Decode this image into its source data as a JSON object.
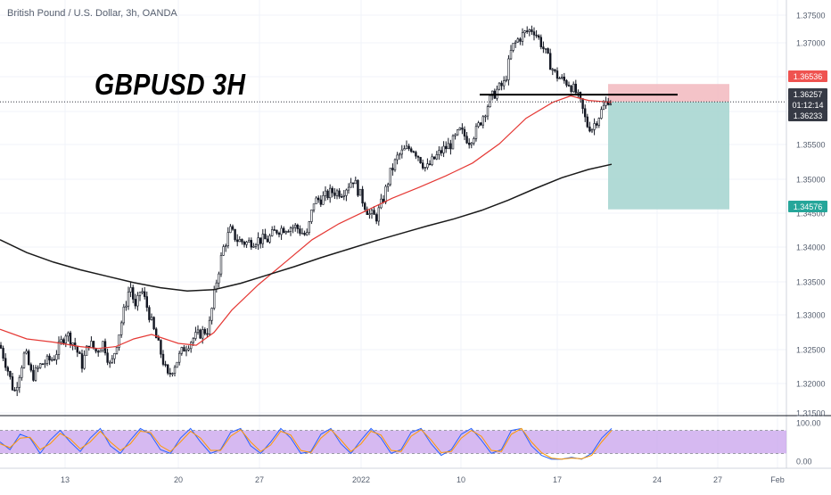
{
  "header": {
    "symbol_title": "British Pound / U.S. Dollar, 3h, OANDA",
    "chart_title": "GBPUSD 3H"
  },
  "chart_data": [
    {
      "type": "candlestick",
      "title": "British Pound / U.S. Dollar, 3h, OANDA",
      "annotation": "GBPUSD 3H",
      "x_tick_labels": [
        "13",
        "20",
        "27",
        "2022",
        "10",
        "17",
        "24",
        "27",
        "Feb"
      ],
      "y_tick_labels": [
        "1.37500",
        "1.37000",
        "1.36500",
        "1.36000",
        "1.35500",
        "1.35000",
        "1.34500",
        "1.34000",
        "1.33500",
        "1.33000",
        "1.32500",
        "1.32000",
        "1.31500"
      ],
      "ylim": [
        1.3135,
        1.3785
      ],
      "price_path": [
        [
          0,
          1.3245
        ],
        [
          8,
          1.321
        ],
        [
          16,
          1.317
        ],
        [
          28,
          1.3235
        ],
        [
          36,
          1.3195
        ],
        [
          46,
          1.3215
        ],
        [
          60,
          1.3225
        ],
        [
          74,
          1.3265
        ],
        [
          84,
          1.3245
        ],
        [
          92,
          1.3215
        ],
        [
          100,
          1.325
        ],
        [
          108,
          1.3235
        ],
        [
          116,
          1.325
        ],
        [
          124,
          1.321
        ],
        [
          132,
          1.3255
        ],
        [
          140,
          1.3305
        ],
        [
          146,
          1.334
        ],
        [
          152,
          1.33
        ],
        [
          158,
          1.3335
        ],
        [
          166,
          1.33
        ],
        [
          172,
          1.327
        ],
        [
          180,
          1.3235
        ],
        [
          188,
          1.3195
        ],
        [
          196,
          1.3215
        ],
        [
          206,
          1.324
        ],
        [
          216,
          1.3255
        ],
        [
          226,
          1.3265
        ],
        [
          234,
          1.327
        ],
        [
          242,
          1.334
        ],
        [
          250,
          1.3395
        ],
        [
          258,
          1.3425
        ],
        [
          266,
          1.341
        ],
        [
          276,
          1.3405
        ],
        [
          288,
          1.341
        ],
        [
          300,
          1.341
        ],
        [
          310,
          1.3425
        ],
        [
          322,
          1.343
        ],
        [
          332,
          1.343
        ],
        [
          344,
          1.3415
        ],
        [
          352,
          1.347
        ],
        [
          362,
          1.3475
        ],
        [
          372,
          1.3485
        ],
        [
          384,
          1.3485
        ],
        [
          396,
          1.3505
        ],
        [
          404,
          1.348
        ],
        [
          414,
          1.345
        ],
        [
          422,
          1.3445
        ],
        [
          430,
          1.3475
        ],
        [
          438,
          1.3515
        ],
        [
          446,
          1.354
        ],
        [
          454,
          1.355
        ],
        [
          462,
          1.3555
        ],
        [
          470,
          1.354
        ],
        [
          478,
          1.352
        ],
        [
          486,
          1.3535
        ],
        [
          496,
          1.355
        ],
        [
          506,
          1.356
        ],
        [
          516,
          1.358
        ],
        [
          526,
          1.3565
        ],
        [
          534,
          1.358
        ],
        [
          542,
          1.3605
        ],
        [
          550,
          1.363
        ],
        [
          558,
          1.3645
        ],
        [
          566,
          1.3655
        ],
        [
          574,
          1.371
        ],
        [
          582,
          1.3725
        ],
        [
          590,
          1.3735
        ],
        [
          598,
          1.374
        ],
        [
          606,
          1.372
        ],
        [
          614,
          1.3695
        ],
        [
          622,
          1.367
        ],
        [
          630,
          1.366
        ],
        [
          638,
          1.3655
        ],
        [
          646,
          1.364
        ],
        [
          652,
          1.362
        ],
        [
          658,
          1.359
        ],
        [
          664,
          1.3585
        ],
        [
          670,
          1.36
        ],
        [
          676,
          1.3615
        ],
        [
          682,
          1.363
        ],
        [
          686,
          1.3625
        ]
      ],
      "series": [
        {
          "name": "",
          "color": "#e53935",
          "values": [
            [
              0,
              1.327
            ],
            [
              30,
              1.3255
            ],
            [
              60,
              1.325
            ],
            [
              90,
              1.3243
            ],
            [
              110,
              1.324
            ],
            [
              130,
              1.3243
            ],
            [
              150,
              1.3255
            ],
            [
              170,
              1.3262
            ],
            [
              185,
              1.3255
            ],
            [
              200,
              1.3248
            ],
            [
              220,
              1.3245
            ],
            [
              240,
              1.3265
            ],
            [
              260,
              1.33
            ],
            [
              290,
              1.334
            ],
            [
              320,
              1.3375
            ],
            [
              350,
              1.341
            ],
            [
              380,
              1.3435
            ],
            [
              410,
              1.3455
            ],
            [
              440,
              1.3475
            ],
            [
              470,
              1.3492
            ],
            [
              500,
              1.351
            ],
            [
              530,
              1.353
            ],
            [
              560,
              1.356
            ],
            [
              590,
              1.36
            ],
            [
              620,
              1.3625
            ],
            [
              640,
              1.3635
            ],
            [
              660,
              1.3628
            ],
            [
              686,
              1.3625
            ]
          ]
        },
        {
          "name": "",
          "color": "#1a1a1a",
          "values": [
            [
              0,
              1.341
            ],
            [
              30,
              1.339
            ],
            [
              60,
              1.3375
            ],
            [
              90,
              1.3363
            ],
            [
              120,
              1.3353
            ],
            [
              150,
              1.3343
            ],
            [
              180,
              1.3335
            ],
            [
              210,
              1.333
            ],
            [
              240,
              1.3332
            ],
            [
              270,
              1.3342
            ],
            [
              300,
              1.3355
            ],
            [
              330,
              1.3368
            ],
            [
              360,
              1.3382
            ],
            [
              390,
              1.3395
            ],
            [
              420,
              1.3408
            ],
            [
              450,
              1.342
            ],
            [
              480,
              1.3432
            ],
            [
              510,
              1.3443
            ],
            [
              540,
              1.3456
            ],
            [
              570,
              1.3472
            ],
            [
              600,
              1.349
            ],
            [
              630,
              1.3507
            ],
            [
              660,
              1.352
            ],
            [
              686,
              1.3528
            ]
          ]
        }
      ],
      "horizontal_line": {
        "price": 1.3637,
        "color": "#000000"
      },
      "position": {
        "type": "short",
        "stop_loss": 1.36536,
        "entry": 1.36257,
        "target": 1.34576,
        "risk_color": "#f2b8be",
        "reward_color": "#a8d6d2"
      },
      "price_badges": [
        {
          "label": "1.36536",
          "price": 1.36536,
          "bg": "#ef5350",
          "fg": "#ffffff"
        },
        {
          "label": "1.36257",
          "price": 1.36257,
          "bg": "#363a45",
          "fg": "#ffffff"
        },
        {
          "label": "01:12:14",
          "price": 1.3615,
          "bg": "#363a45",
          "fg": "#ffffff"
        },
        {
          "label": "1.36233",
          "price": 1.3605,
          "bg": "#363a45",
          "fg": "#ffffff"
        },
        {
          "label": "1.34576",
          "price": 1.34576,
          "bg": "#26a69a",
          "fg": "#ffffff"
        }
      ]
    },
    {
      "type": "line",
      "name": "oscillator",
      "y_tick_labels": [
        "100.00",
        "0.00"
      ],
      "ylim": [
        0,
        100
      ],
      "band": [
        20,
        80
      ],
      "series": [
        {
          "name": "",
          "color": "#2962ff",
          "values": [
            50,
            30,
            70,
            60,
            20,
            55,
            80,
            50,
            25,
            60,
            85,
            40,
            20,
            55,
            85,
            70,
            30,
            20,
            60,
            85,
            50,
            20,
            30,
            75,
            85,
            40,
            20,
            50,
            85,
            60,
            20,
            25,
            70,
            85,
            45,
            20,
            55,
            85,
            60,
            20,
            30,
            75,
            85,
            45,
            15,
            30,
            70,
            85,
            55,
            20,
            30,
            80,
            85,
            40,
            15,
            5,
            5,
            10,
            5,
            20,
            60,
            85
          ]
        },
        {
          "name": "",
          "color": "#ff9800",
          "values": [
            45,
            35,
            60,
            62,
            30,
            45,
            72,
            58,
            32,
            50,
            78,
            50,
            28,
            45,
            78,
            75,
            40,
            25,
            50,
            78,
            60,
            28,
            28,
            65,
            82,
            50,
            25,
            42,
            78,
            68,
            28,
            22,
            60,
            82,
            55,
            25,
            45,
            78,
            68,
            28,
            25,
            65,
            82,
            55,
            22,
            25,
            60,
            80,
            65,
            28,
            25,
            70,
            85,
            50,
            22,
            8,
            5,
            8,
            6,
            15,
            50,
            80
          ]
        }
      ]
    }
  ]
}
